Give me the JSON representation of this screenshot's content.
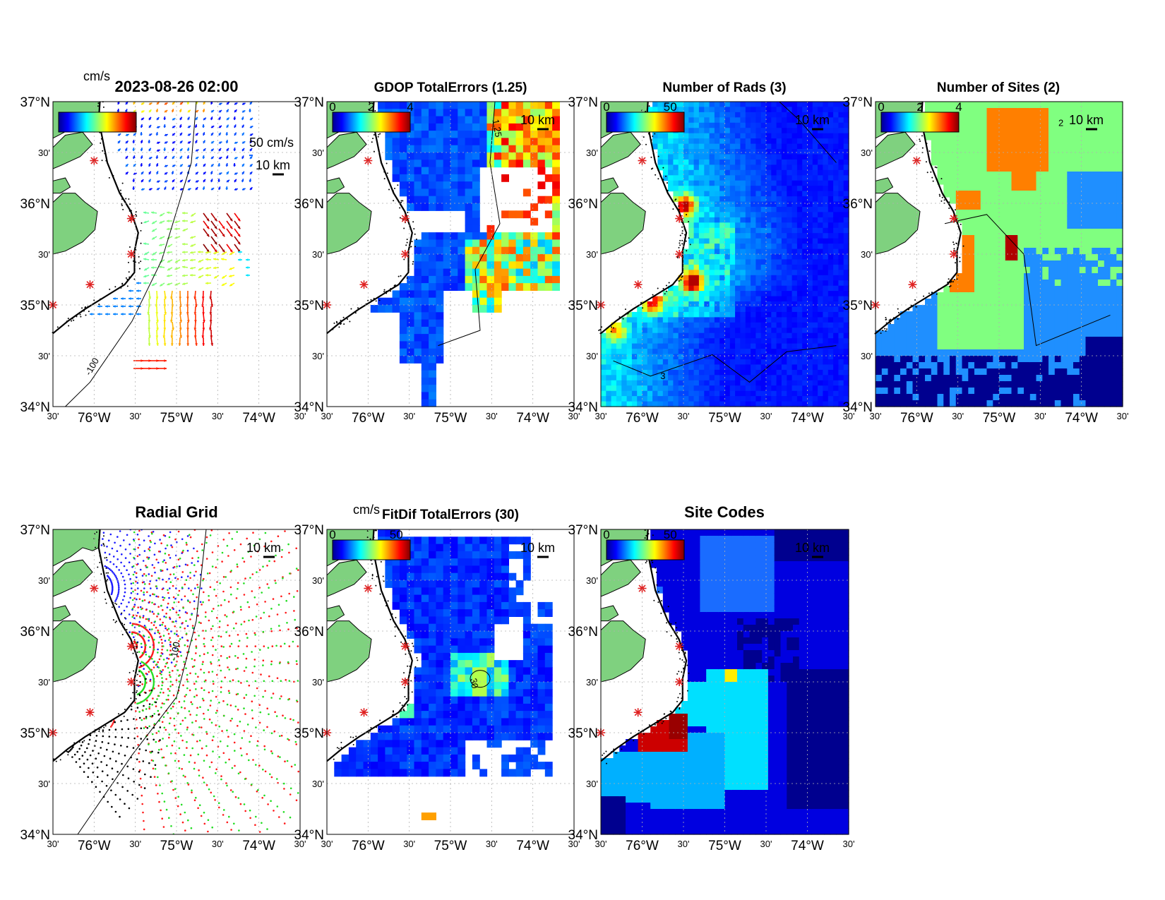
{
  "map": {
    "lat_range": [
      34.0,
      37.0
    ],
    "lon_range": [
      -76.5,
      -73.5
    ],
    "lat_ticks": [
      {
        "value": 37.0,
        "label": "37°N",
        "major": true
      },
      {
        "value": 36.5,
        "label": "30'",
        "major": false
      },
      {
        "value": 36.0,
        "label": "36°N",
        "major": true
      },
      {
        "value": 35.5,
        "label": "30'",
        "major": false
      },
      {
        "value": 35.0,
        "label": "35°N",
        "major": true
      },
      {
        "value": 34.5,
        "label": "30'",
        "major": false
      },
      {
        "value": 34.0,
        "label": "34°N",
        "major": true
      }
    ],
    "lon_ticks": [
      {
        "value": -76.5,
        "label": "30'",
        "major": false
      },
      {
        "value": -76.0,
        "label": "76°W",
        "major": true
      },
      {
        "value": -75.5,
        "label": "30'",
        "major": false
      },
      {
        "value": -75.0,
        "label": "75°W",
        "major": true
      },
      {
        "value": -74.5,
        "label": "30'",
        "major": false
      },
      {
        "value": -74.0,
        "label": "74°W",
        "major": true
      },
      {
        "value": -73.5,
        "label": "30'",
        "major": false
      }
    ],
    "scale_label": "10 km",
    "land_color": "#7fd17f",
    "sites": [
      {
        "lat": 36.42,
        "lon": -76.0
      },
      {
        "lat": 35.85,
        "lon": -75.55
      },
      {
        "lat": 35.5,
        "lon": -75.55
      },
      {
        "lat": 35.2,
        "lon": -76.05
      },
      {
        "lat": 35.0,
        "lon": -76.5
      }
    ],
    "site_color": "#e02020"
  },
  "panels": [
    {
      "id": "totals",
      "title": "2023-08-26 02:00",
      "colorbar": {
        "unit": "cm/s",
        "labels": []
      },
      "vector_scale_label": "50 cm/s",
      "contour_labels": [
        "-100"
      ]
    },
    {
      "id": "gdop",
      "title": "GDOP TotalErrors (1.25)",
      "colorbar": {
        "labels": [
          "0",
          "2",
          "4"
        ]
      },
      "contour_labels": [
        "1.25"
      ]
    },
    {
      "id": "nrads",
      "title": "Number of Rads (3)",
      "colorbar": {
        "labels": [
          "0",
          "50"
        ]
      },
      "contour_labels": [
        "3"
      ]
    },
    {
      "id": "nsites",
      "title": "Number of Sites (2)",
      "colorbar": {
        "labels": [
          "0",
          "2",
          "4"
        ]
      },
      "contour_labels": [
        "2"
      ]
    },
    {
      "id": "radgrid",
      "title": "Radial Grid",
      "contour_labels": [
        "-100"
      ],
      "site_colors": [
        "#1a1aff",
        "#ff1a1a",
        "#22dd22",
        "#ff1a1a",
        "#000000"
      ]
    },
    {
      "id": "fitdif",
      "title": "FitDif TotalErrors (30)",
      "colorbar": {
        "unit": "cm/s",
        "labels": [
          "0",
          "50"
        ]
      },
      "contour_labels": [
        "30"
      ]
    },
    {
      "id": "sitecodes",
      "title": "Site Codes",
      "colorbar": {
        "labels": [
          "0",
          "50"
        ]
      }
    }
  ]
}
